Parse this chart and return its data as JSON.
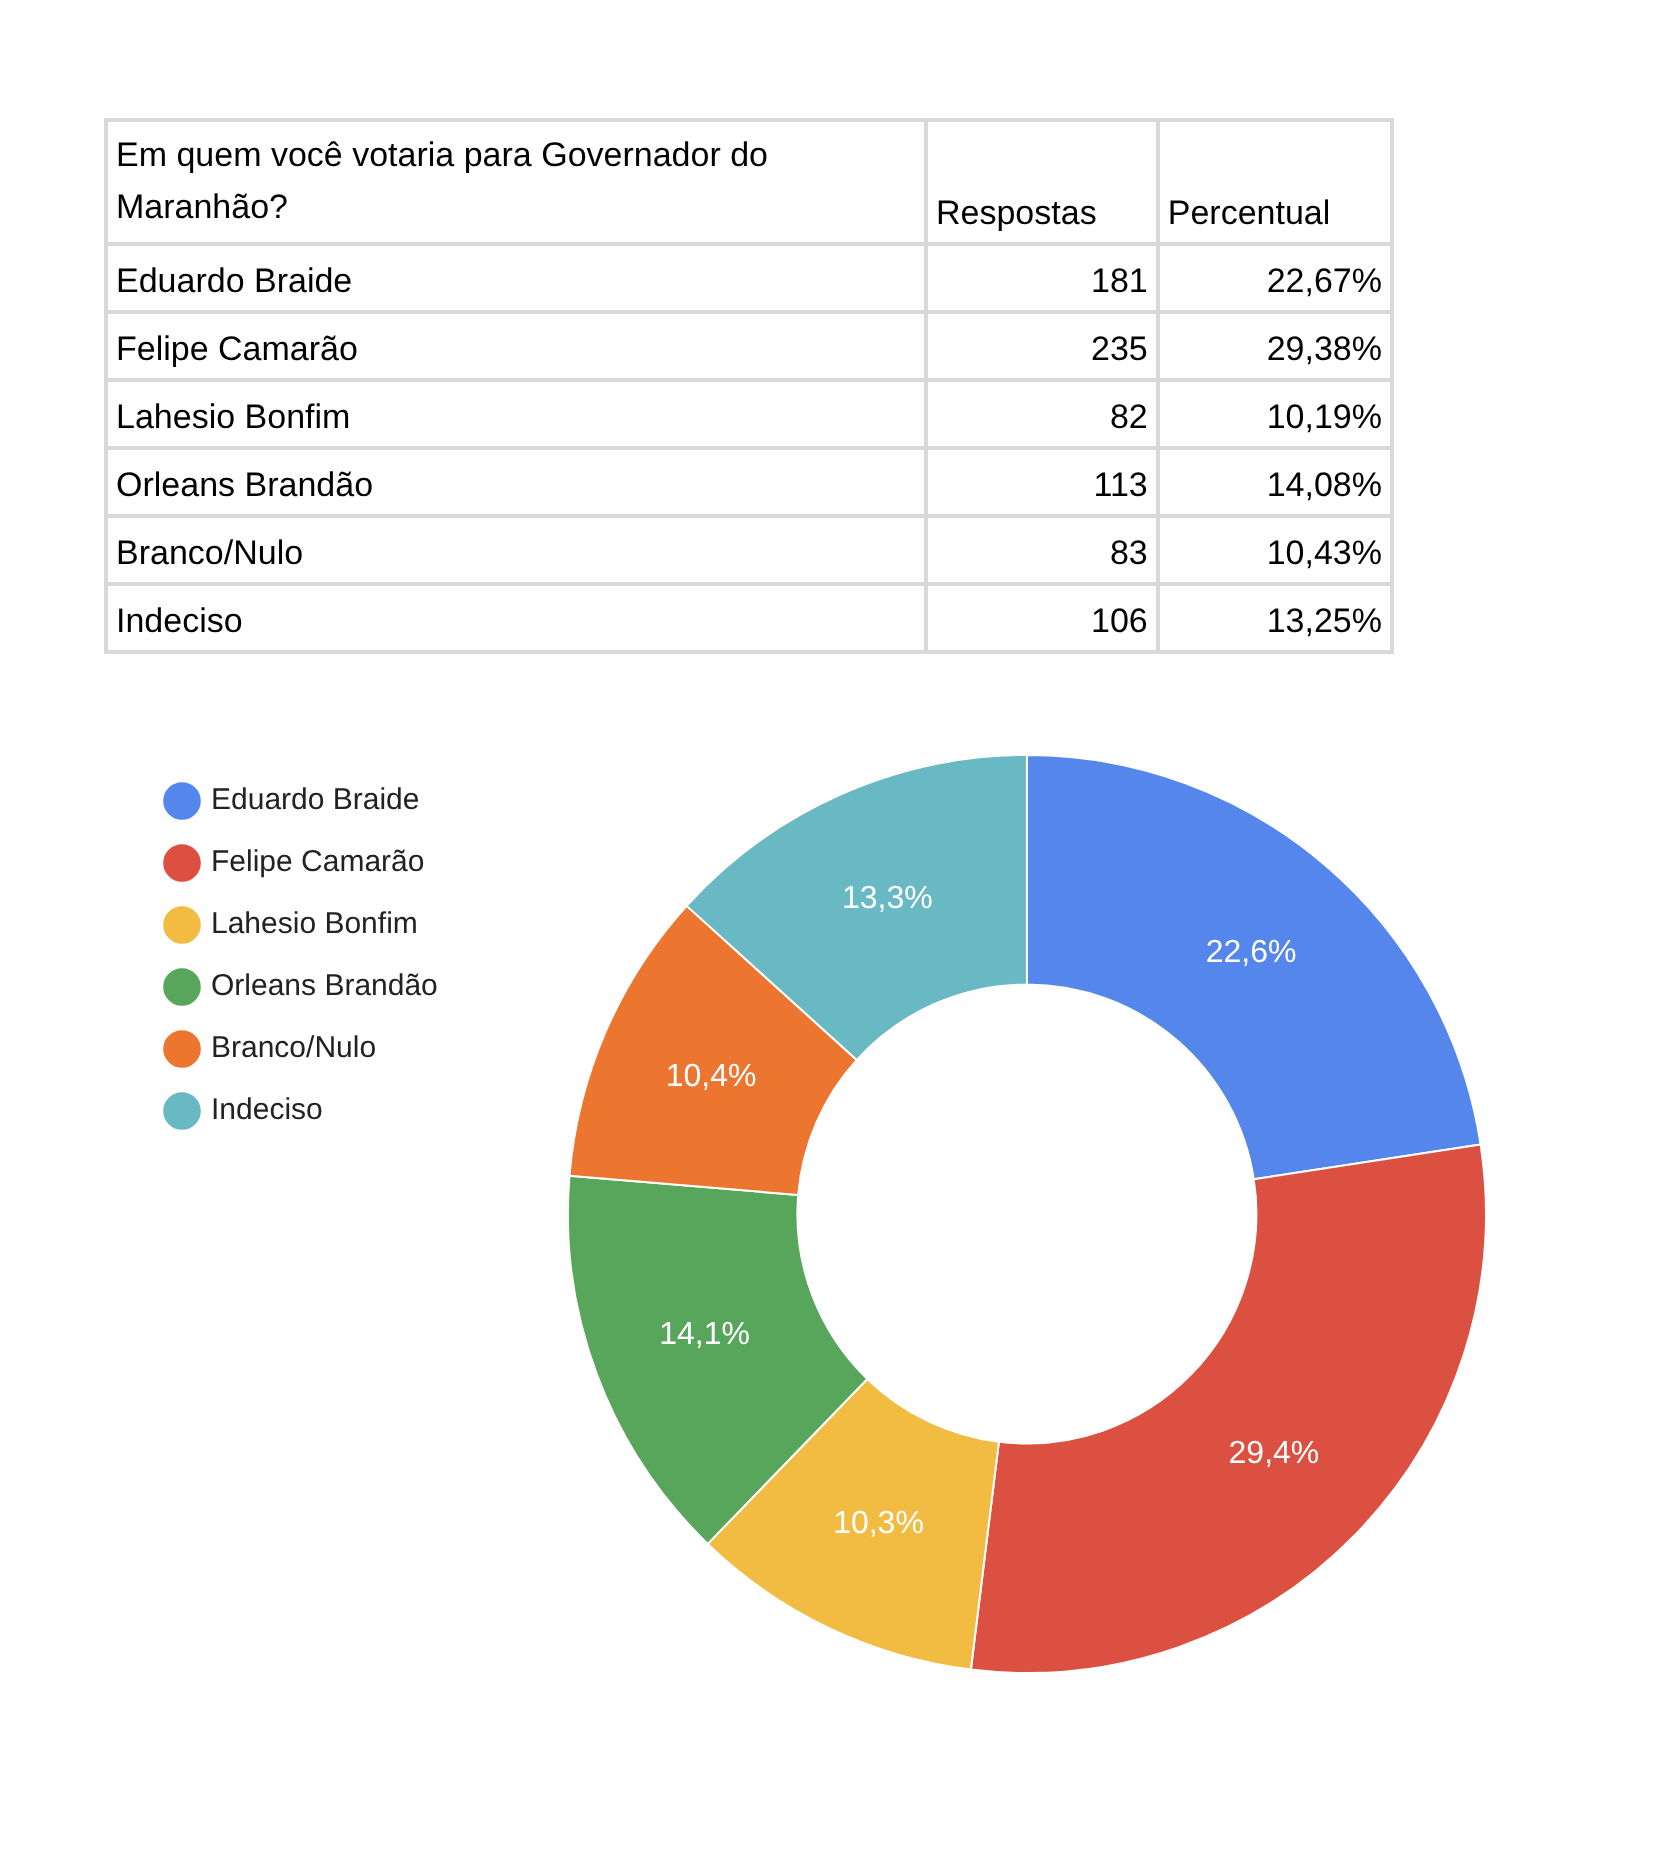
{
  "chart_data": [
    {
      "type": "other",
      "title": "Em quem você votaria para Governador do Maranhão?",
      "categories": [
        "Eduardo Braide",
        "Felipe Camarão",
        "Lahesio Bonfim",
        "Orleans Brandão",
        "Branco/Nulo",
        "Indeciso"
      ],
      "series": [
        {
          "name": "Respostas",
          "values": [
            181,
            235,
            82,
            113,
            83,
            106
          ]
        },
        {
          "name": "Percentual",
          "values": [
            22.67,
            29.38,
            10.19,
            14.08,
            10.43,
            13.25
          ],
          "value_labels": [
            "22,67%",
            "29,38%",
            "10,19%",
            "14,08%",
            "10,43%",
            "13,25%"
          ]
        }
      ],
      "data_labels": true
    },
    {
      "type": "donut",
      "categories": [
        "Eduardo Braide",
        "Felipe Camarão",
        "Lahesio Bonfim",
        "Orleans Brandão",
        "Branco/Nulo",
        "Indeciso"
      ],
      "values": [
        22.6,
        29.4,
        10.3,
        14.1,
        10.4,
        13.3
      ],
      "colors": [
        "#5586eb",
        "#db5040",
        "#f2bc42",
        "#58a55c",
        "#ec7530",
        "#68b9c3"
      ],
      "value_labels": [
        "22,6%",
        "29,4%",
        "10,3%",
        "14,1%",
        "10,4%",
        "13,3%"
      ],
      "legend": "top left"
    }
  ]
}
